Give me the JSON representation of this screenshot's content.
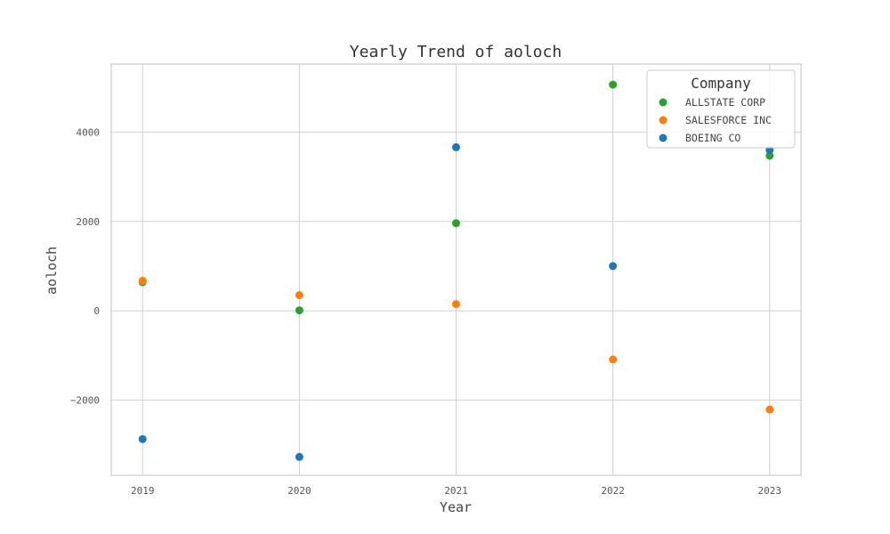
{
  "chart_data": {
    "type": "scatter",
    "title": "Yearly Trend of aoloch",
    "xlabel": "Year",
    "ylabel": "aoloch",
    "x": [
      2019,
      2020,
      2021,
      2022,
      2023
    ],
    "x_tick_labels": [
      "2019",
      "2020",
      "2021",
      "2022",
      "2023"
    ],
    "xlim": [
      2018.8,
      2023.2
    ],
    "ylim": [
      -3680,
      5520
    ],
    "y_ticks": [
      -2000,
      0,
      2000,
      4000
    ],
    "y_tick_labels": [
      "−2000",
      "0",
      "2000",
      "4000"
    ],
    "grid": true,
    "legend": {
      "title": "Company",
      "position": "top-right"
    },
    "series": [
      {
        "name": "ALLSTATE CORP",
        "color": "#2ca02c",
        "values": [
          640,
          10,
          1960,
          5060,
          3470
        ]
      },
      {
        "name": "SALESFORCE INC",
        "color": "#ff7f0e",
        "values": [
          670,
          350,
          150,
          -1090,
          -2210
        ]
      },
      {
        "name": "BOEING CO",
        "color": "#1f77b4",
        "values": [
          -2870,
          -3270,
          3660,
          1000,
          3600
        ]
      }
    ]
  }
}
